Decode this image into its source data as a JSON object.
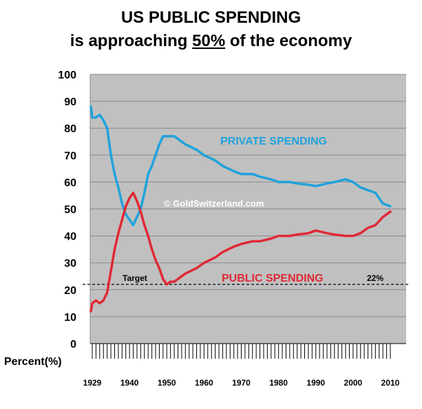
{
  "title_line1": "US PUBLIC SPENDING",
  "title_line2_pre": "is approaching ",
  "title_line2_emph": "50%",
  "title_line2_post": " of the economy",
  "watermark": "© GoldSwitzerland.com",
  "chart_data": {
    "type": "line",
    "title": "US PUBLIC SPENDING is approaching 50% of the economy",
    "xlabel": "",
    "ylabel": "Percent(%)",
    "xlim": [
      1929,
      2010
    ],
    "ylim": [
      0,
      100
    ],
    "x_ticks": [
      1929,
      1940,
      1950,
      1960,
      1970,
      1980,
      1990,
      2000,
      2010
    ],
    "y_ticks": [
      0,
      10,
      20,
      30,
      40,
      50,
      60,
      70,
      80,
      90,
      100
    ],
    "grid": true,
    "series": [
      {
        "name": "PRIVATE SPENDING",
        "color": "#1fa3dc",
        "x": [
          1929,
          1930,
          1931,
          1932,
          1933,
          1934,
          1935,
          1936,
          1937,
          1938,
          1939,
          1940,
          1941,
          1942,
          1943,
          1944,
          1945,
          1946,
          1947,
          1948,
          1949,
          1950,
          1951,
          1952,
          1953,
          1955,
          1958,
          1960,
          1963,
          1965,
          1968,
          1970,
          1973,
          1975,
          1978,
          1980,
          1983,
          1985,
          1988,
          1990,
          1993,
          1995,
          1998,
          2000,
          2002,
          2004,
          2006,
          2008,
          2010
        ],
        "values": [
          88,
          84,
          84,
          85,
          83,
          80,
          70,
          63,
          58,
          52,
          48,
          46,
          44,
          47,
          50,
          56,
          63,
          66,
          70,
          74,
          77,
          77,
          77,
          77,
          76,
          74,
          72,
          70,
          68,
          66,
          64,
          63,
          63,
          62,
          61,
          60,
          60,
          59.5,
          59,
          58.5,
          59.5,
          60,
          61,
          60,
          58,
          57,
          56,
          52,
          51
        ]
      },
      {
        "name": "PUBLIC SPENDING",
        "color": "#e02a36",
        "x": [
          1929,
          1930,
          1931,
          1932,
          1933,
          1934,
          1935,
          1936,
          1937,
          1938,
          1939,
          1940,
          1941,
          1942,
          1943,
          1944,
          1945,
          1946,
          1947,
          1948,
          1949,
          1950,
          1951,
          1952,
          1953,
          1955,
          1958,
          1960,
          1963,
          1965,
          1968,
          1970,
          1973,
          1975,
          1978,
          1980,
          1983,
          1985,
          1988,
          1990,
          1993,
          1995,
          1998,
          2000,
          2002,
          2004,
          2006,
          2008,
          2010
        ],
        "values": [
          12,
          15,
          16,
          15,
          16,
          19,
          27,
          35,
          41,
          46,
          51,
          54,
          56,
          53,
          49,
          44,
          40,
          35,
          31,
          28,
          24,
          22,
          23,
          23,
          24,
          26,
          28,
          30,
          32,
          34,
          36,
          37,
          38,
          38,
          39,
          40,
          40,
          40.5,
          41,
          42,
          41,
          40.5,
          40,
          40,
          41,
          43,
          44,
          47,
          49
        ]
      }
    ],
    "series_labels": [
      "PRIVATE SPENDING",
      "PUBLIC SPENDING"
    ],
    "reference_line": {
      "value": 22,
      "label": "Target",
      "right_label": "22%",
      "style": "dashed",
      "color": "#000000"
    }
  }
}
